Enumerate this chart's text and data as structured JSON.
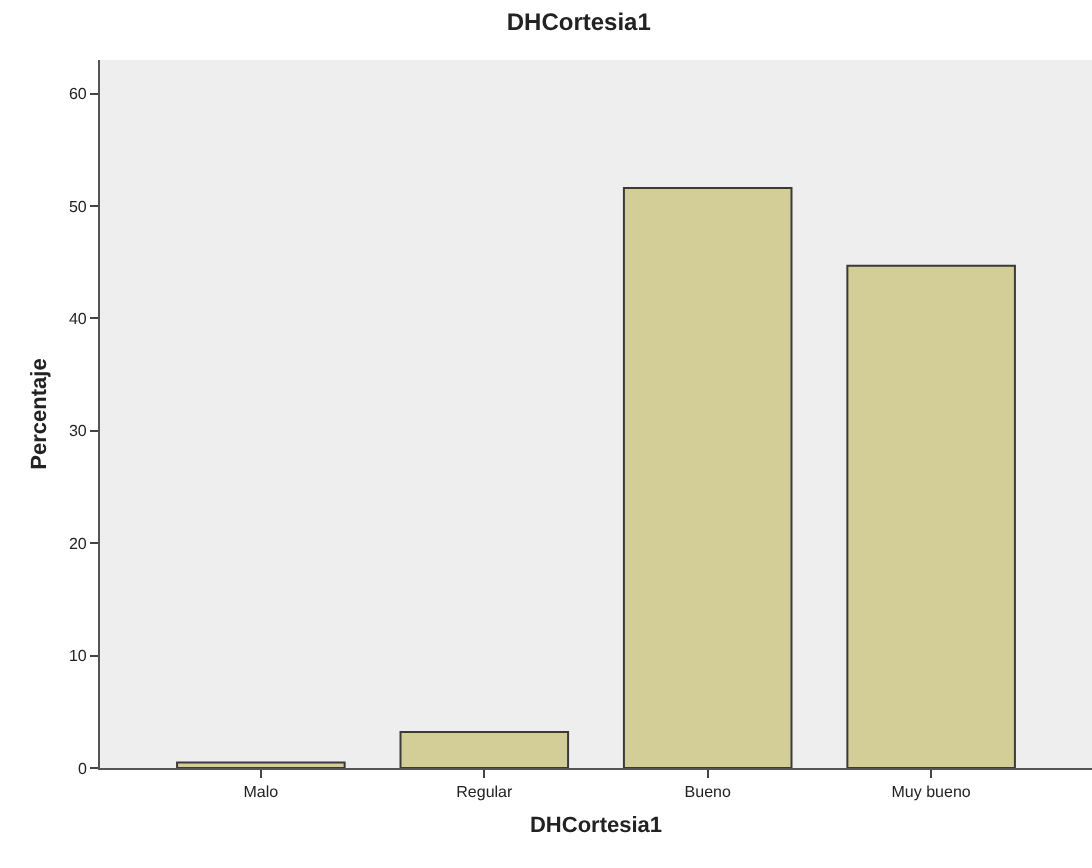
{
  "chart_data": {
    "type": "bar",
    "title": "DHCortesia1",
    "xlabel": "DHCortesia1",
    "ylabel": "Percentaje",
    "categories": [
      "Malo",
      "Regular",
      "Bueno",
      "Muy bueno"
    ],
    "values": [
      0.5,
      3.2,
      51.6,
      44.7
    ],
    "color": "#d3cd98",
    "ylim": [
      0,
      63
    ],
    "yticks": [
      0,
      10,
      20,
      30,
      40,
      50,
      60
    ],
    "grid": false,
    "legend": false
  }
}
